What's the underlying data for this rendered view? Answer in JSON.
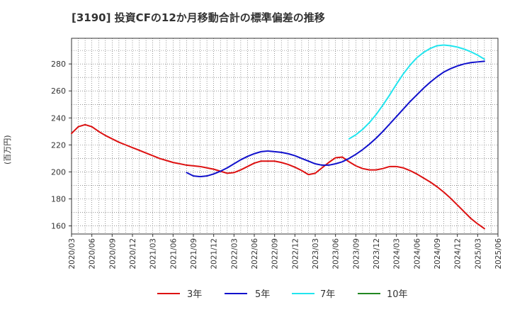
{
  "chart_data": {
    "type": "line",
    "title": "[3190]  投資CFの12か月移動合計の標準偏差の推移",
    "ylabel": "(百万円)",
    "xlabel": "",
    "ylim": [
      154,
      299
    ],
    "yticks": [
      160,
      180,
      200,
      220,
      240,
      260,
      280
    ],
    "x_tick_labels": [
      "2020/03",
      "2020/06",
      "2020/09",
      "2020/12",
      "2021/03",
      "2021/06",
      "2021/09",
      "2021/12",
      "2022/03",
      "2022/06",
      "2022/09",
      "2022/12",
      "2023/03",
      "2023/06",
      "2023/09",
      "2023/12",
      "2024/03",
      "2024/06",
      "2024/09",
      "2024/12",
      "2025/03",
      "2025/06"
    ],
    "grid": true,
    "legend_position": "bottom",
    "series": [
      {
        "name": "3年",
        "color": "#dd1111",
        "points": [
          [
            "2020/03",
            228.5
          ],
          [
            "2020/04",
            233.5
          ],
          [
            "2020/05",
            235.0
          ],
          [
            "2020/06",
            233.5
          ],
          [
            "2020/07",
            230.0
          ],
          [
            "2020/08",
            227.0
          ],
          [
            "2020/09",
            224.5
          ],
          [
            "2020/10",
            222.0
          ],
          [
            "2020/11",
            220.0
          ],
          [
            "2020/12",
            218.0
          ],
          [
            "2021/01",
            216.0
          ],
          [
            "2021/02",
            214.0
          ],
          [
            "2021/03",
            212.0
          ],
          [
            "2021/04",
            210.0
          ],
          [
            "2021/05",
            208.5
          ],
          [
            "2021/06",
            207.0
          ],
          [
            "2021/07",
            206.0
          ],
          [
            "2021/08",
            205.0
          ],
          [
            "2021/09",
            204.5
          ],
          [
            "2021/10",
            204.0
          ],
          [
            "2021/11",
            203.0
          ],
          [
            "2021/12",
            202.0
          ],
          [
            "2022/01",
            200.5
          ],
          [
            "2022/02",
            199.0
          ],
          [
            "2022/03",
            199.5
          ],
          [
            "2022/04",
            201.5
          ],
          [
            "2022/05",
            204.0
          ],
          [
            "2022/06",
            206.5
          ],
          [
            "2022/07",
            208.0
          ],
          [
            "2022/08",
            208.0
          ],
          [
            "2022/09",
            208.0
          ],
          [
            "2022/10",
            207.0
          ],
          [
            "2022/11",
            205.5
          ],
          [
            "2022/12",
            203.5
          ],
          [
            "2023/01",
            201.0
          ],
          [
            "2023/02",
            198.0
          ],
          [
            "2023/03",
            199.0
          ],
          [
            "2023/04",
            203.0
          ],
          [
            "2023/05",
            207.0
          ],
          [
            "2023/06",
            210.5
          ],
          [
            "2023/07",
            211.0
          ],
          [
            "2023/08",
            207.5
          ],
          [
            "2023/09",
            204.5
          ],
          [
            "2023/10",
            202.5
          ],
          [
            "2023/11",
            201.5
          ],
          [
            "2023/12",
            201.5
          ],
          [
            "2024/01",
            202.5
          ],
          [
            "2024/02",
            204.0
          ],
          [
            "2024/03",
            204.0
          ],
          [
            "2024/04",
            203.0
          ],
          [
            "2024/05",
            201.0
          ],
          [
            "2024/06",
            198.5
          ],
          [
            "2024/07",
            195.5
          ],
          [
            "2024/08",
            192.5
          ],
          [
            "2024/09",
            189.0
          ],
          [
            "2024/10",
            185.0
          ],
          [
            "2024/11",
            180.5
          ],
          [
            "2024/12",
            175.5
          ],
          [
            "2025/01",
            170.5
          ],
          [
            "2025/02",
            165.5
          ],
          [
            "2025/03",
            161.5
          ],
          [
            "2025/04",
            158.0
          ]
        ]
      },
      {
        "name": "5年",
        "color": "#1111cc",
        "points": [
          [
            "2021/08",
            199.5
          ],
          [
            "2021/09",
            197.0
          ],
          [
            "2021/10",
            196.5
          ],
          [
            "2021/11",
            197.0
          ],
          [
            "2021/12",
            198.5
          ],
          [
            "2022/01",
            200.5
          ],
          [
            "2022/02",
            203.0
          ],
          [
            "2022/03",
            206.0
          ],
          [
            "2022/04",
            209.0
          ],
          [
            "2022/05",
            211.5
          ],
          [
            "2022/06",
            213.5
          ],
          [
            "2022/07",
            215.0
          ],
          [
            "2022/08",
            215.5
          ],
          [
            "2022/09",
            215.0
          ],
          [
            "2022/10",
            214.5
          ],
          [
            "2022/11",
            213.5
          ],
          [
            "2022/12",
            212.0
          ],
          [
            "2023/01",
            210.0
          ],
          [
            "2023/02",
            208.0
          ],
          [
            "2023/03",
            206.0
          ],
          [
            "2023/04",
            205.0
          ],
          [
            "2023/05",
            205.0
          ],
          [
            "2023/06",
            206.0
          ],
          [
            "2023/07",
            207.5
          ],
          [
            "2023/08",
            210.0
          ],
          [
            "2023/09",
            213.0
          ],
          [
            "2023/10",
            216.5
          ],
          [
            "2023/11",
            220.5
          ],
          [
            "2023/12",
            225.0
          ],
          [
            "2024/01",
            230.0
          ],
          [
            "2024/02",
            235.5
          ],
          [
            "2024/03",
            241.0
          ],
          [
            "2024/04",
            246.5
          ],
          [
            "2024/05",
            252.0
          ],
          [
            "2024/06",
            257.0
          ],
          [
            "2024/07",
            262.0
          ],
          [
            "2024/08",
            266.5
          ],
          [
            "2024/09",
            270.5
          ],
          [
            "2024/10",
            274.0
          ],
          [
            "2024/11",
            276.5
          ],
          [
            "2024/12",
            278.5
          ],
          [
            "2025/01",
            280.0
          ],
          [
            "2025/02",
            281.0
          ],
          [
            "2025/03",
            281.5
          ],
          [
            "2025/04",
            282.0
          ]
        ]
      },
      {
        "name": "7年",
        "color": "#22e5ee",
        "points": [
          [
            "2023/08",
            224.5
          ],
          [
            "2023/09",
            227.5
          ],
          [
            "2023/10",
            231.5
          ],
          [
            "2023/11",
            236.5
          ],
          [
            "2023/12",
            242.5
          ],
          [
            "2024/01",
            249.5
          ],
          [
            "2024/02",
            257.0
          ],
          [
            "2024/03",
            265.0
          ],
          [
            "2024/04",
            272.5
          ],
          [
            "2024/05",
            279.0
          ],
          [
            "2024/06",
            284.5
          ],
          [
            "2024/07",
            288.5
          ],
          [
            "2024/08",
            291.5
          ],
          [
            "2024/09",
            293.5
          ],
          [
            "2024/10",
            294.0
          ],
          [
            "2024/11",
            293.5
          ],
          [
            "2024/12",
            292.5
          ],
          [
            "2025/01",
            291.0
          ],
          [
            "2025/02",
            289.0
          ],
          [
            "2025/03",
            286.5
          ],
          [
            "2025/04",
            283.5
          ]
        ]
      },
      {
        "name": "10年",
        "color": "#228822",
        "points": []
      }
    ]
  }
}
